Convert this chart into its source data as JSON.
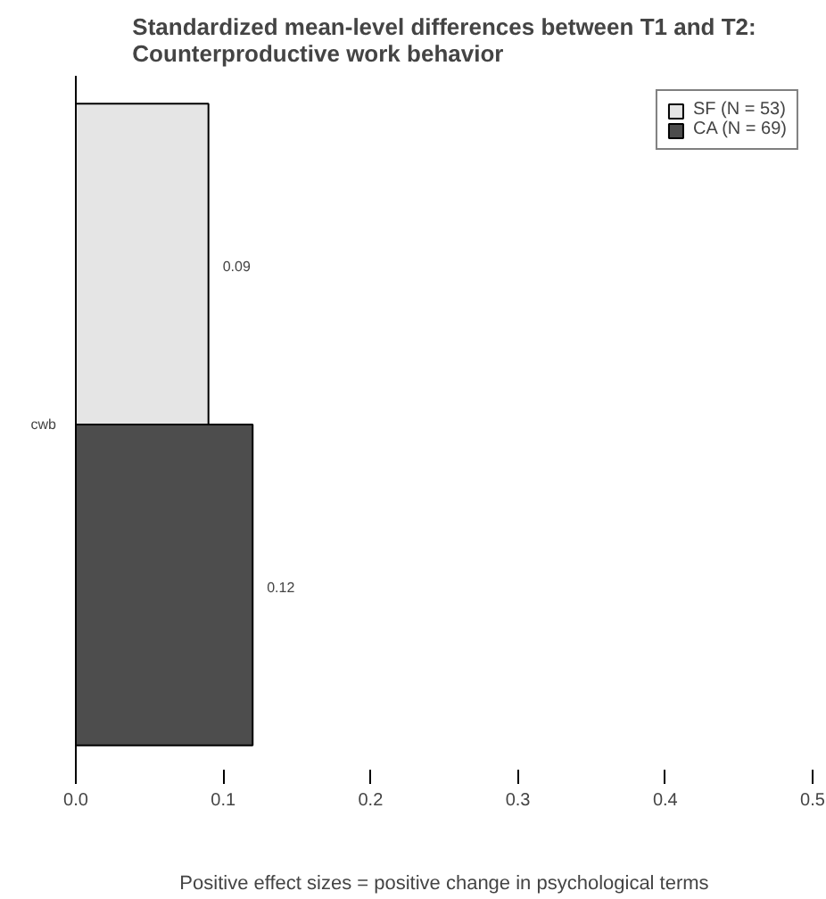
{
  "chart_data": {
    "type": "bar",
    "orientation": "horizontal",
    "title": "Standardized mean-level differences between T1 and T2:\nCounterproductive work behavior",
    "xlabel": "Positive effect sizes = positive change in psychological terms",
    "categories": [
      "cwb"
    ],
    "series": [
      {
        "name": "SF (N = 53)",
        "color": "#e5e5e5",
        "values": [
          0.09
        ]
      },
      {
        "name": "CA (N = 69)",
        "color": "#4d4d4d",
        "values": [
          0.12
        ]
      }
    ],
    "xlim": [
      0,
      0.5
    ],
    "xticks": [
      {
        "value": 0,
        "label": "0.0"
      },
      {
        "value": 0.1,
        "label": "0.1"
      },
      {
        "value": 0.2,
        "label": "0.2"
      },
      {
        "value": 0.3,
        "label": "0.3"
      },
      {
        "value": 0.4,
        "label": "0.4"
      },
      {
        "value": 0.5,
        "label": "0.5"
      }
    ],
    "data_labels": true,
    "legend": "top right",
    "grid": false
  }
}
